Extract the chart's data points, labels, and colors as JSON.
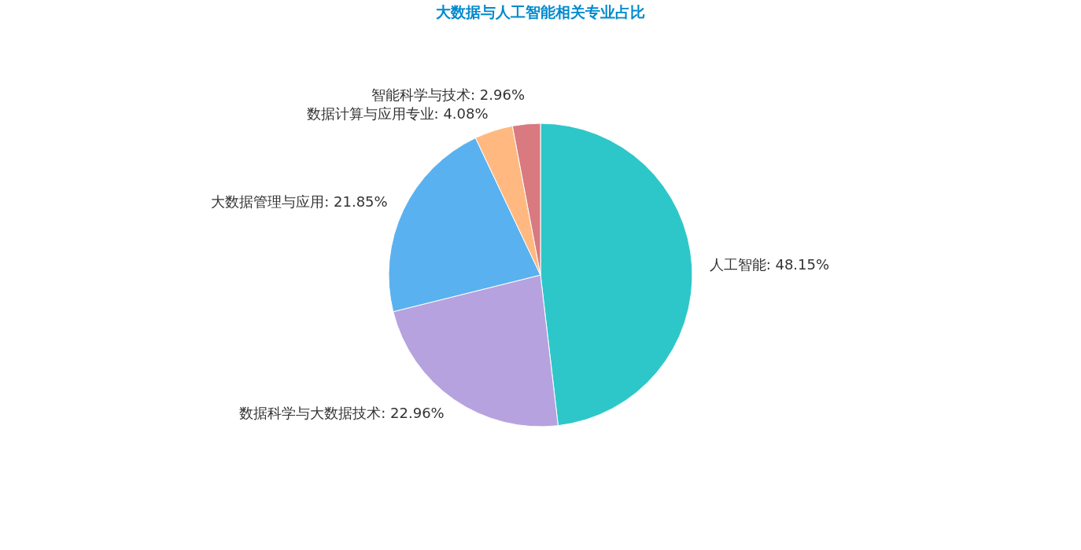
{
  "chart_data": {
    "type": "pie",
    "title": "大数据与人工智能相关专业占比",
    "categories": [
      "人工智能",
      "数据科学与大数据技术",
      "大数据管理与应用",
      "数据计算与应用专业",
      "智能科学与技术"
    ],
    "values": [
      48.15,
      22.96,
      21.85,
      4.08,
      2.96
    ],
    "value_labels": [
      "48.15%",
      "22.96%",
      "21.85%",
      "4.08%",
      "2.96%"
    ],
    "colors": [
      "#2ec7c9",
      "#b6a2de",
      "#5ab1ef",
      "#ffb980",
      "#d87a80"
    ],
    "legend": false
  }
}
